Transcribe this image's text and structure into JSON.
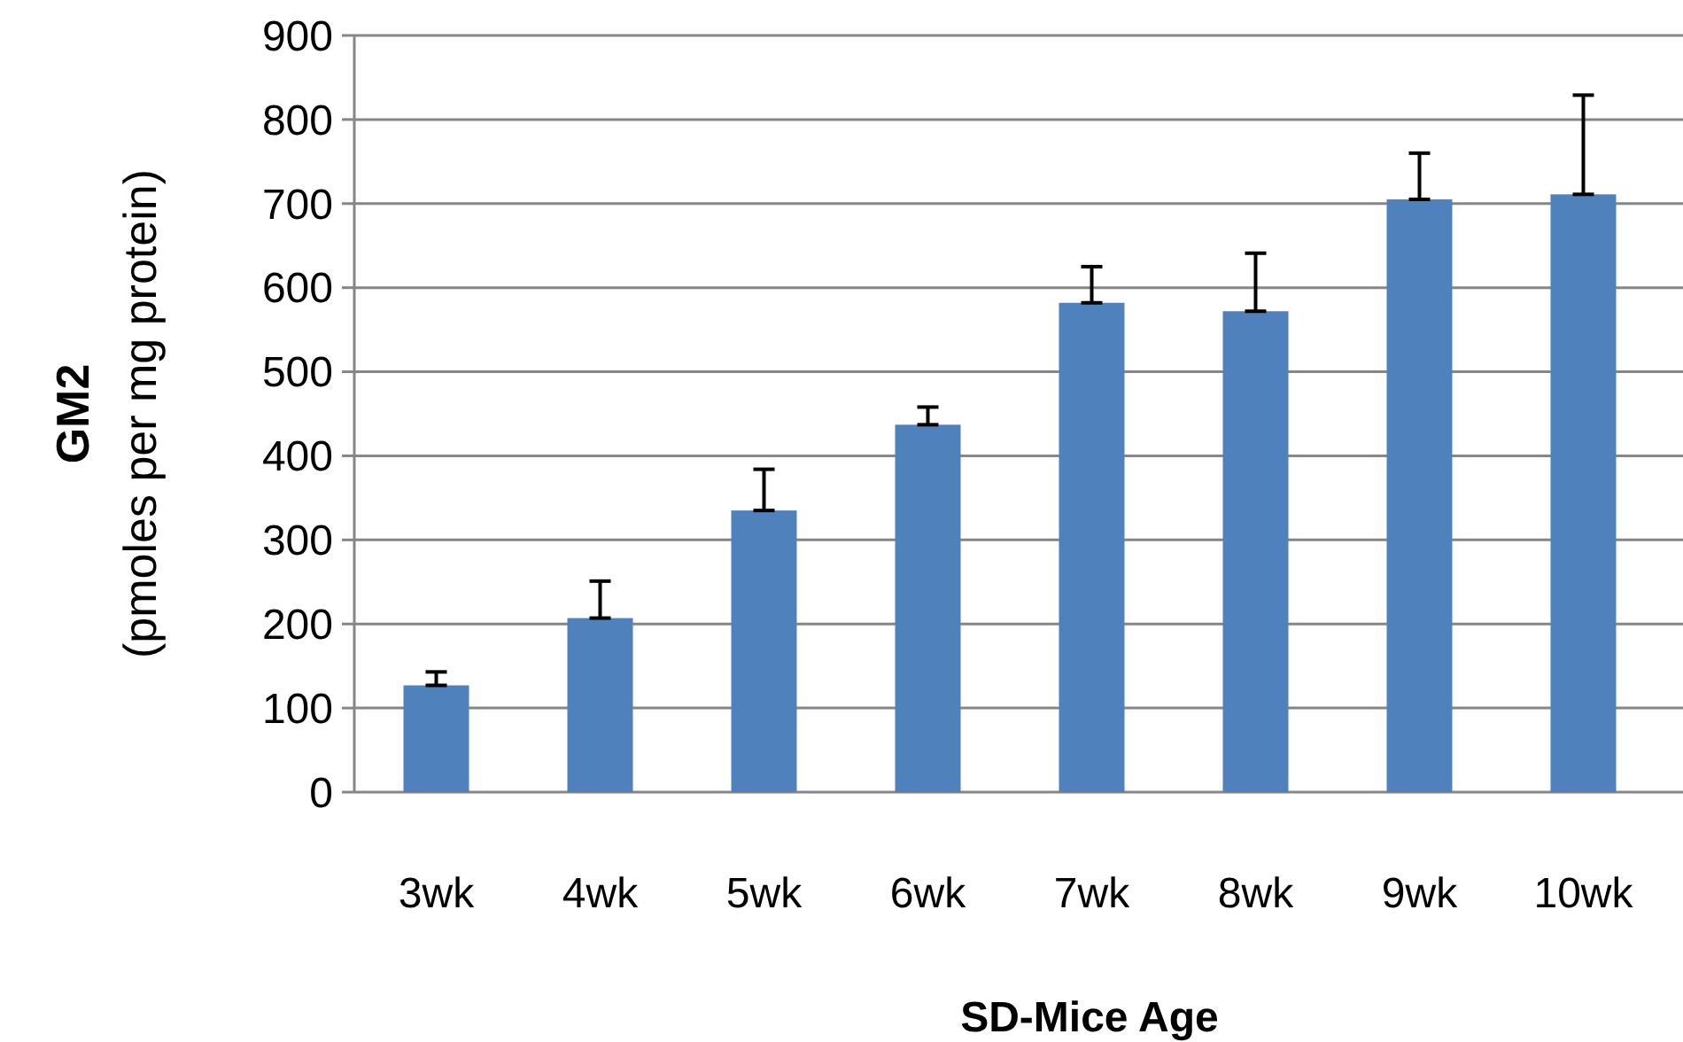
{
  "chart_data": {
    "type": "bar",
    "xlabel": "SD-Mice Age",
    "ylabel": "GM2\n(pmoles per mg protein)",
    "categories": [
      "3wk",
      "4wk",
      "5wk",
      "6wk",
      "7wk",
      "8wk",
      "9wk",
      "10wk"
    ],
    "values": [
      127,
      207,
      335,
      437,
      582,
      572,
      705,
      711
    ],
    "errors": [
      [
        127,
        143
      ],
      [
        207,
        251
      ],
      [
        335,
        384
      ],
      [
        437,
        458
      ],
      [
        582,
        625
      ],
      [
        572,
        641
      ],
      [
        705,
        760
      ],
      [
        711,
        829
      ]
    ],
    "color": "#4f81bd",
    "ylim": [
      0,
      900
    ],
    "yticks": [
      0,
      100,
      200,
      300,
      400,
      500,
      600,
      700,
      800,
      900
    ],
    "grid": "y"
  }
}
